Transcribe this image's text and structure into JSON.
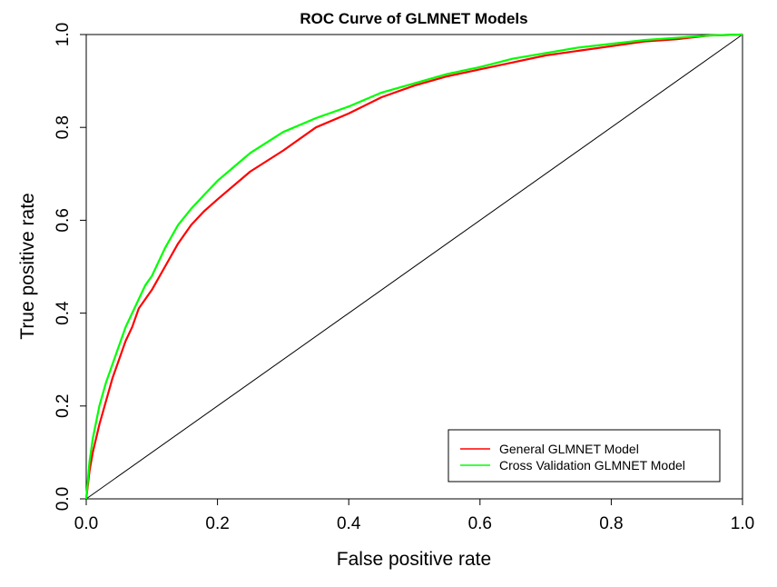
{
  "chart_data": {
    "type": "line",
    "title": "ROC Curve of GLMNET Models",
    "xlabel": "False positive rate",
    "ylabel": "True positive rate",
    "xlim": [
      0,
      1
    ],
    "ylim": [
      0,
      1
    ],
    "x_ticks": [
      "0.0",
      "0.2",
      "0.4",
      "0.6",
      "0.8",
      "1.0"
    ],
    "y_ticks": [
      "0.0",
      "0.2",
      "0.4",
      "0.6",
      "0.8",
      "1.0"
    ],
    "legend_position": "bottom-right",
    "series": [
      {
        "name": "General GLMNET Model",
        "color": "#ff0000",
        "x": [
          0,
          0.005,
          0.01,
          0.02,
          0.03,
          0.04,
          0.05,
          0.06,
          0.07,
          0.08,
          0.09,
          0.1,
          0.12,
          0.14,
          0.16,
          0.18,
          0.2,
          0.25,
          0.3,
          0.35,
          0.4,
          0.45,
          0.5,
          0.55,
          0.6,
          0.65,
          0.7,
          0.75,
          0.8,
          0.85,
          0.9,
          0.95,
          1.0
        ],
        "y": [
          0,
          0.06,
          0.1,
          0.16,
          0.21,
          0.26,
          0.3,
          0.34,
          0.37,
          0.41,
          0.43,
          0.45,
          0.5,
          0.55,
          0.59,
          0.62,
          0.645,
          0.705,
          0.75,
          0.8,
          0.83,
          0.865,
          0.89,
          0.91,
          0.925,
          0.94,
          0.955,
          0.965,
          0.975,
          0.985,
          0.99,
          0.998,
          1.0
        ]
      },
      {
        "name": "Cross Validation GLMNET Model",
        "color": "#00ff00",
        "x": [
          0,
          0.005,
          0.01,
          0.02,
          0.03,
          0.04,
          0.05,
          0.06,
          0.07,
          0.08,
          0.09,
          0.1,
          0.12,
          0.14,
          0.16,
          0.18,
          0.2,
          0.25,
          0.3,
          0.35,
          0.4,
          0.45,
          0.5,
          0.55,
          0.6,
          0.65,
          0.7,
          0.75,
          0.8,
          0.85,
          0.9,
          0.95,
          1.0
        ],
        "y": [
          0,
          0.08,
          0.13,
          0.2,
          0.25,
          0.29,
          0.33,
          0.37,
          0.4,
          0.43,
          0.46,
          0.48,
          0.54,
          0.59,
          0.625,
          0.655,
          0.685,
          0.745,
          0.79,
          0.82,
          0.845,
          0.875,
          0.895,
          0.915,
          0.93,
          0.948,
          0.96,
          0.972,
          0.98,
          0.988,
          0.993,
          0.998,
          1.0
        ]
      },
      {
        "name": "diagonal",
        "color": "#000000",
        "x": [
          0,
          1
        ],
        "y": [
          0,
          1
        ]
      }
    ]
  }
}
